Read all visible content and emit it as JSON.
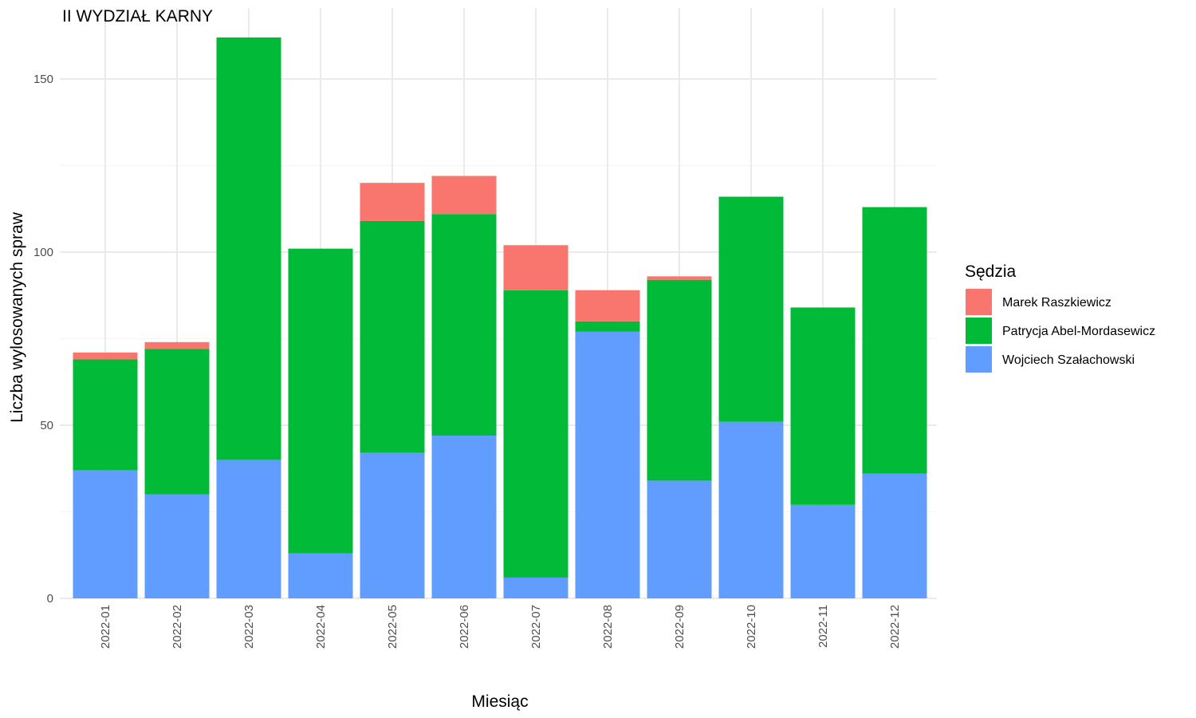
{
  "chart_data": {
    "type": "bar",
    "stacked": true,
    "title": "II WYDZIAŁ KARNY",
    "xlabel": "Miesiąc",
    "ylabel": "Liczba wylosowanych spraw",
    "categories": [
      "2022-01",
      "2022-02",
      "2022-03",
      "2022-04",
      "2022-05",
      "2022-06",
      "2022-07",
      "2022-08",
      "2022-09",
      "2022-10",
      "2022-11",
      "2022-12"
    ],
    "ylim": [
      0,
      165
    ],
    "yticks": [
      0,
      50,
      100,
      150
    ],
    "grid": true,
    "legend": {
      "title": "Sędzia",
      "position": "right"
    },
    "series": [
      {
        "name": "Wojciech Szałachowski",
        "color": "#619CFF",
        "values": [
          37,
          30,
          40,
          13,
          42,
          47,
          6,
          77,
          34,
          51,
          27,
          36
        ]
      },
      {
        "name": "Patrycja Abel-Mordasewicz",
        "color": "#00BA38",
        "values": [
          32,
          42,
          122,
          88,
          67,
          64,
          83,
          3,
          58,
          65,
          57,
          77
        ]
      },
      {
        "name": "Marek Raszkiewicz",
        "color": "#F8766D",
        "values": [
          2,
          2,
          0,
          0,
          11,
          11,
          13,
          9,
          1,
          0,
          0,
          0
        ]
      }
    ],
    "legend_order": [
      "Marek Raszkiewicz",
      "Patrycja Abel-Mordasewicz",
      "Wojciech Szałachowski"
    ]
  }
}
